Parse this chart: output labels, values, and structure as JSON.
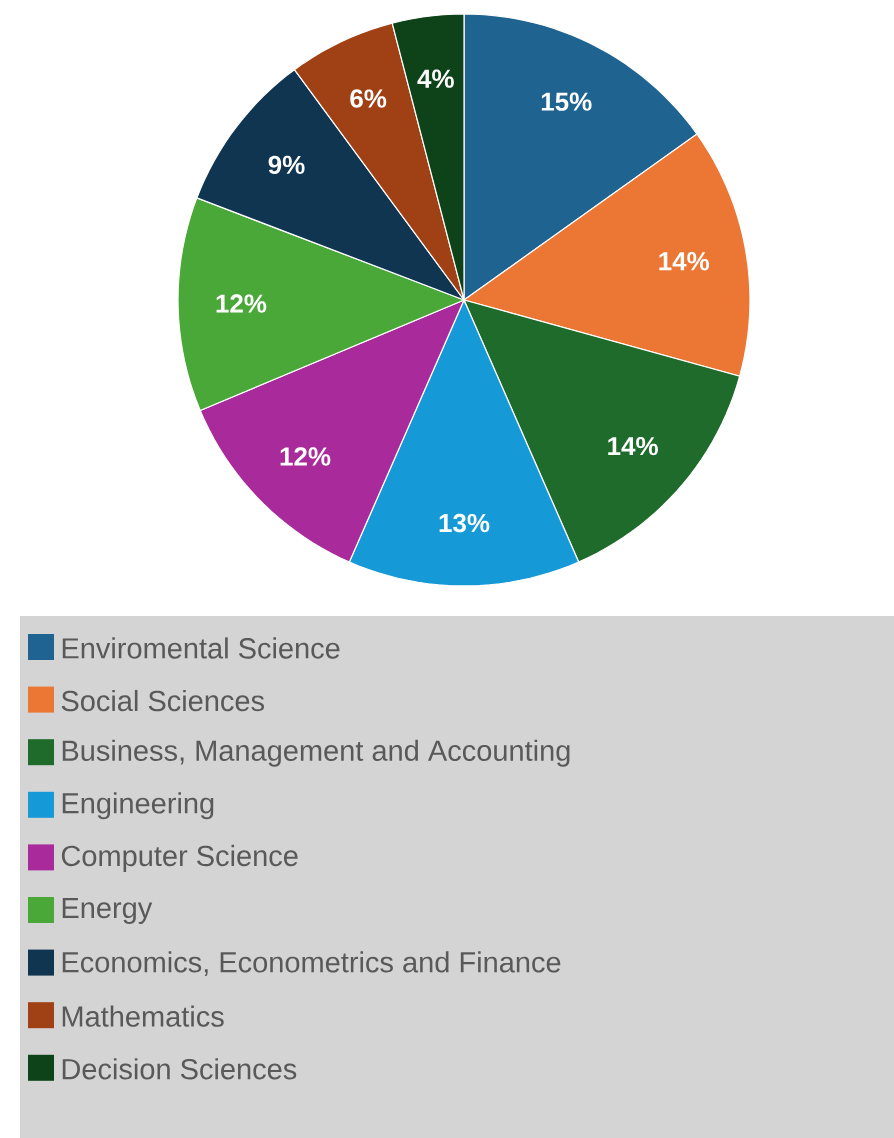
{
  "chart_data": {
    "type": "pie",
    "categories": [
      "Enviromental Science",
      "Social Sciences",
      "Business, Management and Accounting",
      "Engineering",
      "Computer Science",
      "Energy",
      "Economics, Econometrics and Finance",
      "Mathematics",
      "Decision Sciences"
    ],
    "values": [
      15,
      14,
      14,
      13,
      12,
      12,
      9,
      6,
      4
    ],
    "value_labels": [
      "15%",
      "14%",
      "14%",
      "13%",
      "12%",
      "12%",
      "9%",
      "6%",
      "4%"
    ],
    "colors": [
      "#1f6391",
      "#ec7634",
      "#1e6b2b",
      "#169ad7",
      "#a92a9a",
      "#4aa838",
      "#0f3550",
      "#a04015",
      "#0e4219"
    ],
    "legend": "bottom"
  }
}
